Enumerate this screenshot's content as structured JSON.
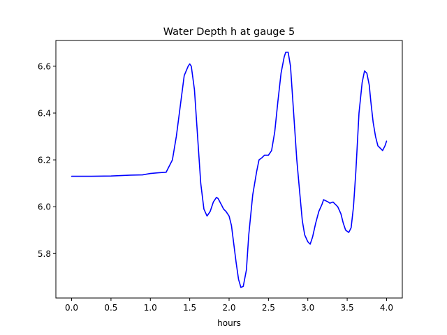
{
  "chart_data": {
    "type": "line",
    "title": "Water Depth h at gauge 5",
    "xlabel": "hours",
    "ylabel": "",
    "xlim": [
      -0.2,
      4.2
    ],
    "ylim": [
      5.61,
      6.71
    ],
    "x_ticks": [
      0.0,
      0.5,
      1.0,
      1.5,
      2.0,
      2.5,
      3.0,
      3.5,
      4.0
    ],
    "x_tick_labels": [
      "0.0",
      "0.5",
      "1.0",
      "1.5",
      "2.0",
      "2.5",
      "3.0",
      "3.5",
      "4.0"
    ],
    "y_ticks": [
      5.8,
      6.0,
      6.2,
      6.4,
      6.6
    ],
    "y_tick_labels": [
      "5.8",
      "6.0",
      "6.2",
      "6.4",
      "6.6"
    ],
    "grid": false,
    "legend": "none",
    "colors": {
      "line": "#0000ff",
      "axes": "#000000",
      "background": "#ffffff"
    },
    "series": [
      {
        "x": [
          0.0,
          0.25,
          0.5,
          0.75,
          0.9,
          1.0,
          1.1,
          1.2,
          1.28,
          1.33,
          1.38,
          1.43,
          1.48,
          1.5,
          1.52,
          1.56,
          1.6,
          1.64,
          1.68,
          1.72,
          1.76,
          1.8,
          1.84,
          1.86,
          1.9,
          1.93,
          1.96,
          2.0,
          2.03,
          2.06,
          2.09,
          2.12,
          2.15,
          2.18,
          2.22,
          2.25,
          2.3,
          2.35,
          2.38,
          2.42,
          2.45,
          2.5,
          2.54,
          2.58,
          2.62,
          2.66,
          2.7,
          2.72,
          2.75,
          2.78,
          2.82,
          2.86,
          2.9,
          2.93,
          2.96,
          3.0,
          3.03,
          3.06,
          3.1,
          3.14,
          3.18,
          3.2,
          3.23,
          3.26,
          3.28,
          3.32,
          3.35,
          3.38,
          3.42,
          3.45,
          3.48,
          3.52,
          3.55,
          3.58,
          3.61,
          3.65,
          3.69,
          3.72,
          3.75,
          3.78,
          3.8,
          3.83,
          3.86,
          3.89,
          3.92,
          3.95,
          3.98,
          4.0
        ],
        "y": [
          6.13,
          6.13,
          6.131,
          6.135,
          6.136,
          6.142,
          6.145,
          6.147,
          6.2,
          6.3,
          6.43,
          6.56,
          6.6,
          6.61,
          6.6,
          6.5,
          6.3,
          6.1,
          5.99,
          5.96,
          5.98,
          6.02,
          6.04,
          6.035,
          6.01,
          5.99,
          5.98,
          5.96,
          5.92,
          5.84,
          5.76,
          5.69,
          5.655,
          5.66,
          5.73,
          5.88,
          6.05,
          6.15,
          6.2,
          6.21,
          6.22,
          6.22,
          6.24,
          6.32,
          6.45,
          6.57,
          6.64,
          6.66,
          6.66,
          6.6,
          6.4,
          6.2,
          6.05,
          5.94,
          5.88,
          5.85,
          5.84,
          5.87,
          5.93,
          5.98,
          6.01,
          6.03,
          6.025,
          6.02,
          6.015,
          6.02,
          6.01,
          6.0,
          5.97,
          5.93,
          5.9,
          5.89,
          5.91,
          6.0,
          6.15,
          6.4,
          6.53,
          6.58,
          6.57,
          6.52,
          6.45,
          6.36,
          6.3,
          6.26,
          6.25,
          6.24,
          6.26,
          6.28
        ]
      }
    ]
  }
}
